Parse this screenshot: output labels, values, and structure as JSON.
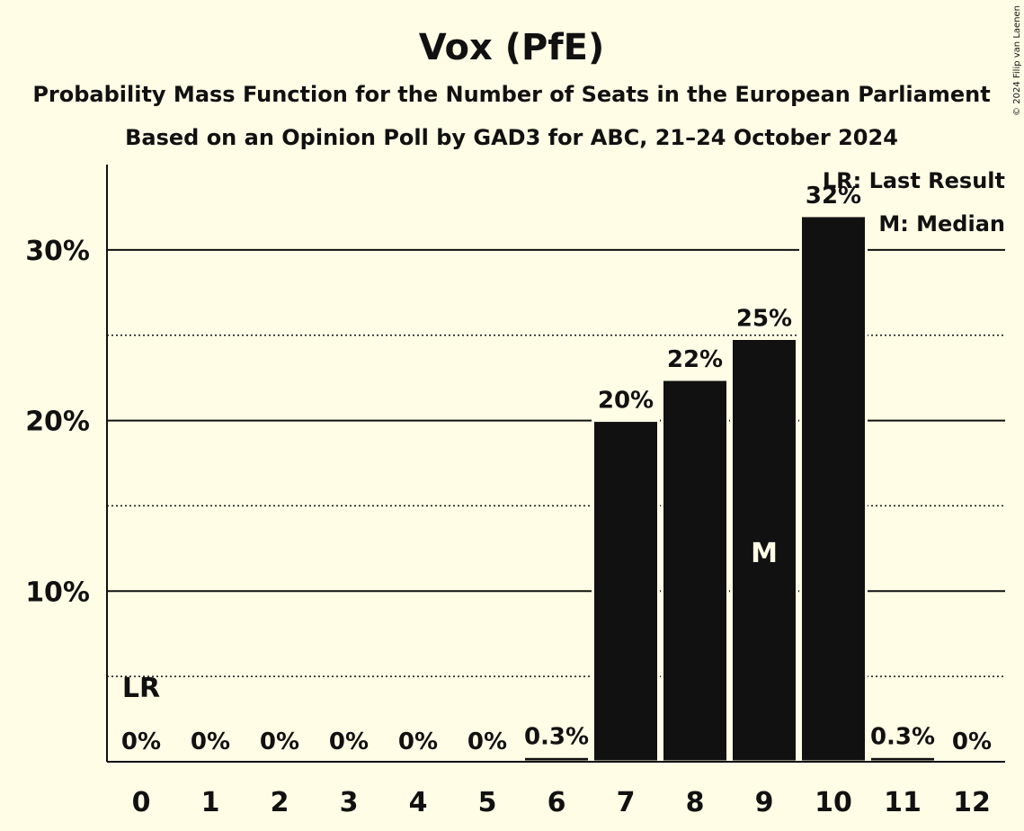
{
  "chart_data": {
    "type": "bar",
    "title": "Vox (PfE)",
    "subtitle": "Probability Mass Function for the Number of Seats in the European Parliament",
    "subtitle2": "Based on an Opinion Poll by GAD3 for ABC, 21–24 October 2024",
    "categories": [
      "0",
      "1",
      "2",
      "3",
      "4",
      "5",
      "6",
      "7",
      "8",
      "9",
      "10",
      "11",
      "12"
    ],
    "values": [
      0,
      0,
      0,
      0,
      0,
      0,
      0.3,
      20,
      22.4,
      24.8,
      32,
      0.3,
      0
    ],
    "labels": [
      "0%",
      "0%",
      "0%",
      "0%",
      "0%",
      "0%",
      "0.3%",
      "20%",
      "22%",
      "25%",
      "32%",
      "0.3%",
      "0%"
    ],
    "ylim": [
      0,
      35
    ],
    "yticks": [
      {
        "value": 10,
        "label": "10%"
      },
      {
        "value": 20,
        "label": "20%"
      },
      {
        "value": 30,
        "label": "30%"
      }
    ],
    "minor_gridlines": [
      5,
      15,
      25
    ],
    "bar_color": "#111111",
    "background": "#fffde6",
    "last_result": {
      "index": 0,
      "label": "LR"
    },
    "median": {
      "index": 9,
      "label": "M"
    },
    "legend": [
      "LR: Last Result",
      "M: Median"
    ],
    "legend_position": "top-right",
    "copyright": "© 2024 Filip van Laenen"
  }
}
